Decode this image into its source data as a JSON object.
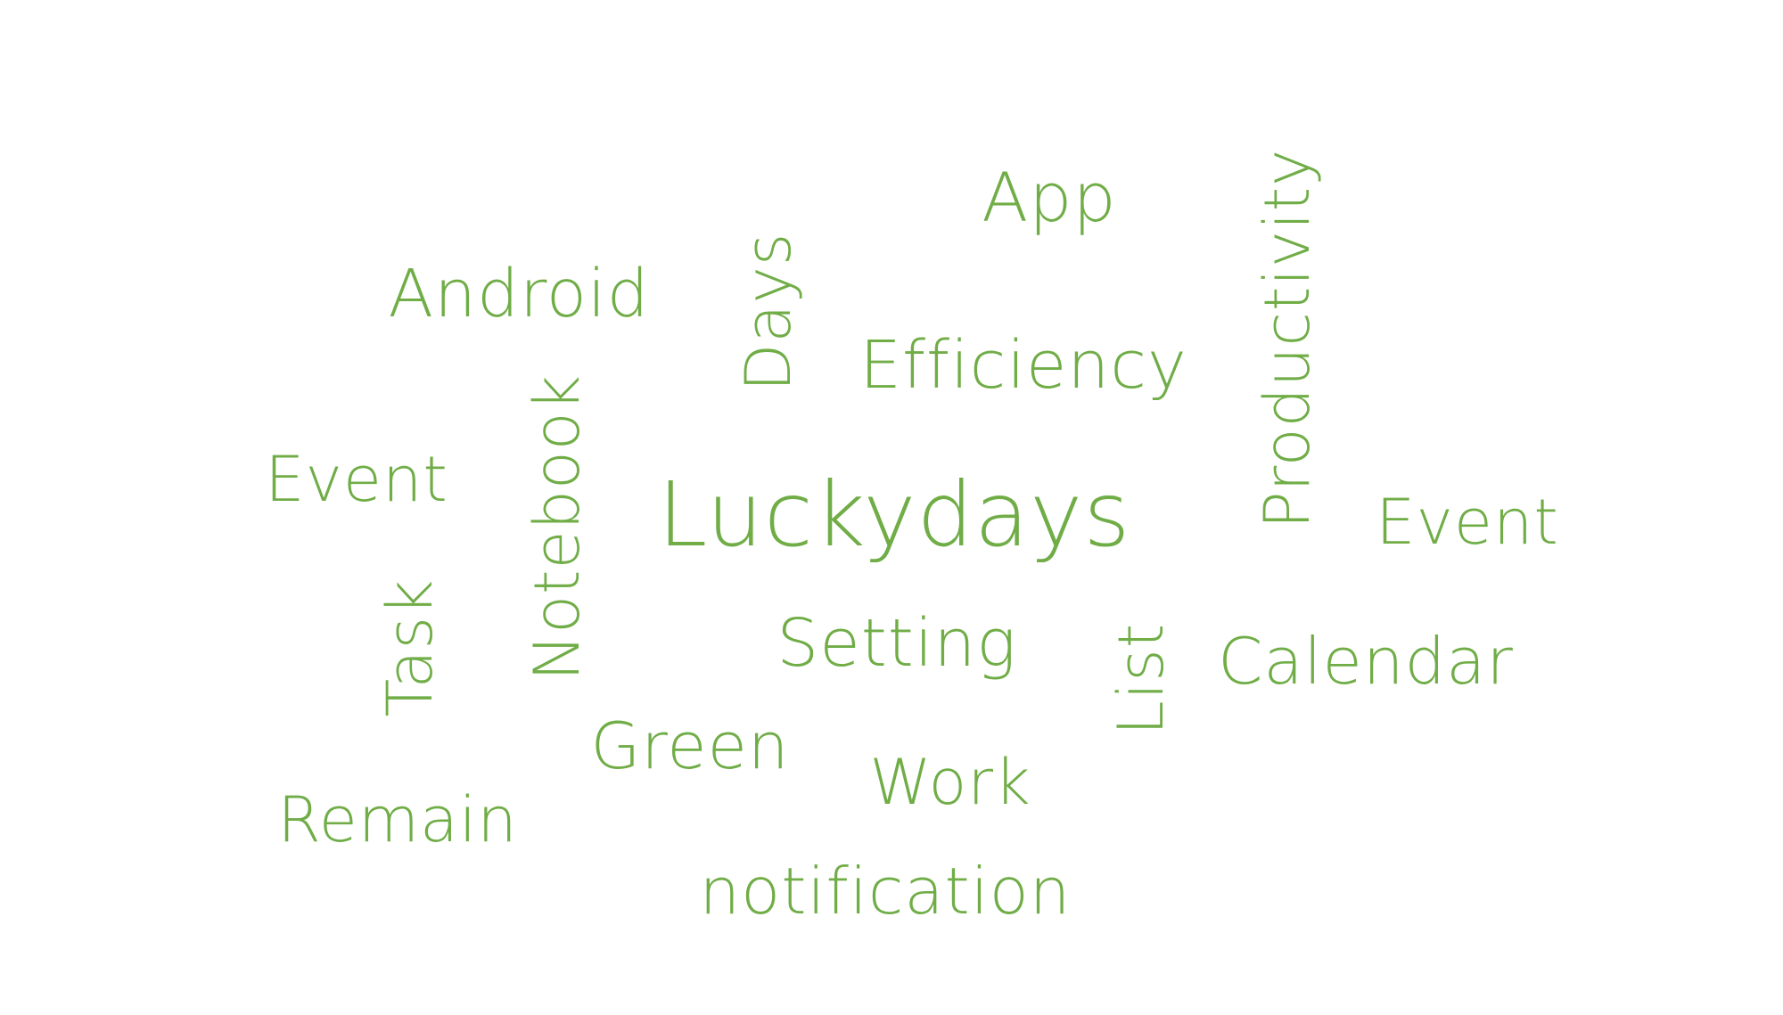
{
  "accent_color": "#70AD47",
  "background_color": "#FFFFFF",
  "words": {
    "app": "App",
    "android": "Android",
    "days": "Days",
    "efficiency": "Efficiency",
    "productivity": "Productivity",
    "event_left": "Event",
    "notebook": "Notebook",
    "luckydays": "Luckydays",
    "event_right": "Event",
    "task": "Task",
    "setting": "Setting",
    "list": "List",
    "calendar": "Calendar",
    "green": "Green",
    "work": "Work",
    "remain": "Remain",
    "notification": "notification"
  }
}
